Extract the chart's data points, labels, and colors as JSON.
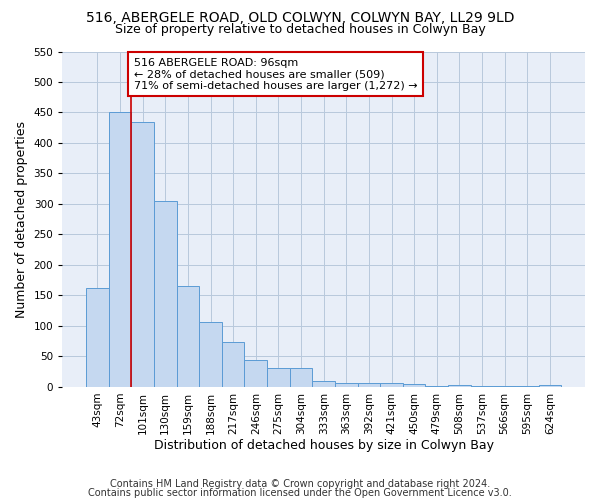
{
  "title_line1": "516, ABERGELE ROAD, OLD COLWYN, COLWYN BAY, LL29 9LD",
  "title_line2": "Size of property relative to detached houses in Colwyn Bay",
  "xlabel": "Distribution of detached houses by size in Colwyn Bay",
  "ylabel": "Number of detached properties",
  "categories": [
    "43sqm",
    "72sqm",
    "101sqm",
    "130sqm",
    "159sqm",
    "188sqm",
    "217sqm",
    "246sqm",
    "275sqm",
    "304sqm",
    "333sqm",
    "363sqm",
    "392sqm",
    "421sqm",
    "450sqm",
    "479sqm",
    "508sqm",
    "537sqm",
    "566sqm",
    "595sqm",
    "624sqm"
  ],
  "values": [
    163,
    450,
    435,
    305,
    165,
    106,
    74,
    44,
    31,
    31,
    10,
    7,
    7,
    7,
    5,
    2,
    4,
    1,
    1,
    1,
    4
  ],
  "bar_color": "#c5d8f0",
  "bar_edge_color": "#5b9bd5",
  "grid_color": "#b8c8dc",
  "background_color": "#e8eef8",
  "annotation_line1": "516 ABERGELE ROAD: 96sqm",
  "annotation_line2": "← 28% of detached houses are smaller (509)",
  "annotation_line3": "71% of semi-detached houses are larger (1,272) →",
  "annotation_box_color": "#cc0000",
  "ylim": [
    0,
    550
  ],
  "yticks": [
    0,
    50,
    100,
    150,
    200,
    250,
    300,
    350,
    400,
    450,
    500,
    550
  ],
  "footnote_line1": "Contains HM Land Registry data © Crown copyright and database right 2024.",
  "footnote_line2": "Contains public sector information licensed under the Open Government Licence v3.0.",
  "title_fontsize": 10,
  "subtitle_fontsize": 9,
  "axis_label_fontsize": 9,
  "tick_fontsize": 7.5,
  "annotation_fontsize": 8,
  "footnote_fontsize": 7
}
